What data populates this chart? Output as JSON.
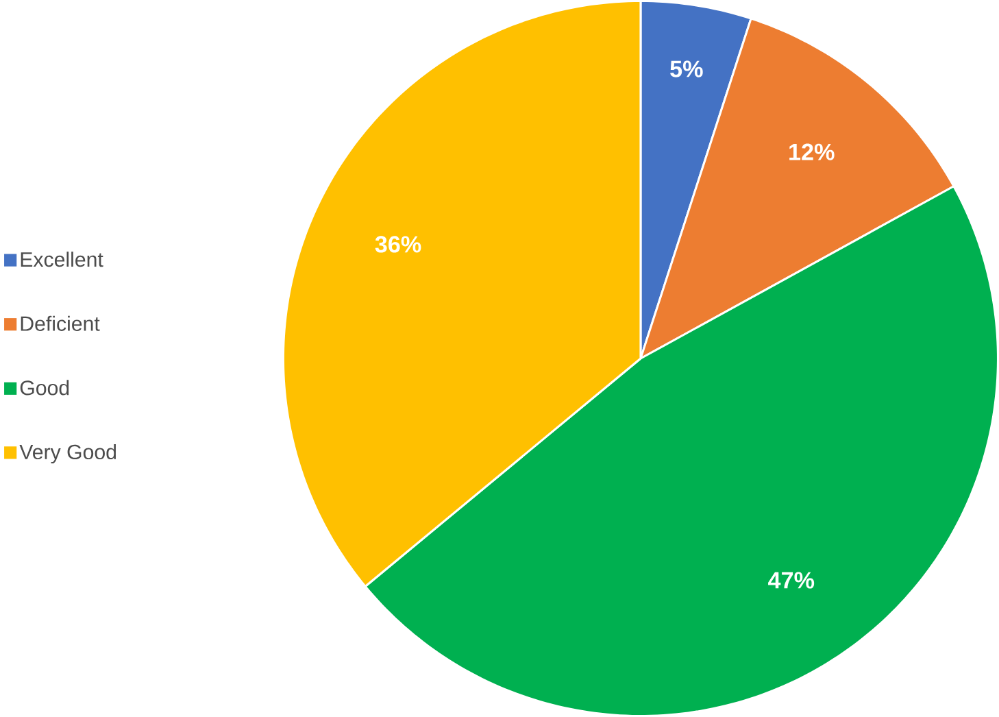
{
  "chart_data": {
    "type": "pie",
    "categories": [
      "Excellent",
      "Deficient",
      "Good",
      "Very Good"
    ],
    "values": [
      5,
      12,
      47,
      36
    ],
    "value_labels": [
      "5%",
      "12%",
      "47%",
      "36%"
    ],
    "colors": [
      "#4472c4",
      "#ed7d31",
      "#00b050",
      "#ffc000"
    ],
    "legend": "left"
  }
}
